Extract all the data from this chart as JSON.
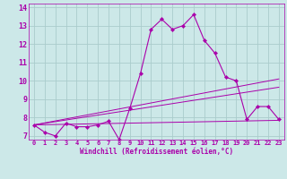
{
  "title": "",
  "xlabel": "Windchill (Refroidissement éolien,°C)",
  "ylabel": "",
  "background_color": "#cce8e8",
  "grid_color": "#aacccc",
  "line_color": "#aa00aa",
  "xlim": [
    -0.5,
    23.5
  ],
  "ylim": [
    6.8,
    14.2
  ],
  "yticks": [
    7,
    8,
    9,
    10,
    11,
    12,
    13,
    14
  ],
  "xticks": [
    0,
    1,
    2,
    3,
    4,
    5,
    6,
    7,
    8,
    9,
    10,
    11,
    12,
    13,
    14,
    15,
    16,
    17,
    18,
    19,
    20,
    21,
    22,
    23
  ],
  "main_series_x": [
    0,
    1,
    2,
    3,
    4,
    5,
    6,
    7,
    8,
    9,
    10,
    11,
    12,
    13,
    14,
    15,
    16,
    17,
    18,
    19,
    20,
    21,
    22,
    23
  ],
  "main_series_y": [
    7.6,
    7.2,
    7.0,
    7.7,
    7.5,
    7.5,
    7.6,
    7.8,
    6.8,
    8.5,
    10.4,
    12.8,
    13.35,
    12.8,
    13.0,
    13.6,
    12.2,
    11.5,
    10.2,
    10.0,
    7.9,
    8.6,
    8.6,
    7.9
  ],
  "line1_x": [
    0,
    23
  ],
  "line1_y": [
    7.6,
    7.85
  ],
  "line2_x": [
    0,
    23
  ],
  "line2_y": [
    7.6,
    9.65
  ],
  "line3_x": [
    0,
    23
  ],
  "line3_y": [
    7.6,
    10.1
  ]
}
